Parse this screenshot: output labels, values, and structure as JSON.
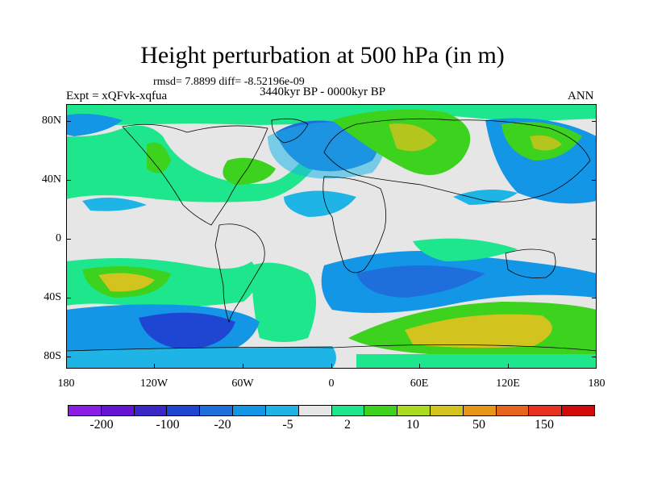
{
  "figure": {
    "title": "Height perturbation at 500 hPa (in m)",
    "stats": "rmsd= 7.8899 diff= -8.52196e-09",
    "period": "3440kyr BP - 0000kyr BP",
    "experiment": "Expt = xQFvk-xqfua",
    "season": "ANN"
  },
  "axes": {
    "y_ticks": [
      "80N",
      "40N",
      "0",
      "40S",
      "80S"
    ],
    "x_ticks": [
      "180",
      "120W",
      "60W",
      "0",
      "60E",
      "120E",
      "180"
    ]
  },
  "colorbar": {
    "colors": [
      "#8c1fe6",
      "#6414d2",
      "#3c28c8",
      "#1e46d2",
      "#1e6edc",
      "#1496e6",
      "#1eb4e6",
      "#e6e6e6",
      "#1ee68c",
      "#3cd21e",
      "#aadc1e",
      "#d2c31e",
      "#e69614",
      "#e6641e",
      "#e6321e",
      "#d20a0a"
    ],
    "labels": [
      "-200",
      "-100",
      "-20",
      "-5",
      "2",
      "10",
      "50",
      "150"
    ]
  },
  "map_palette": {
    "neutral": "#e6e6e6",
    "green_light": "#1ee68c",
    "green": "#3cd21e",
    "yellow": "#d2c31e",
    "cyan": "#1eb4e6",
    "blue_mid": "#1496e6",
    "blue": "#1e6edc",
    "blue_dark": "#1e46d2"
  }
}
